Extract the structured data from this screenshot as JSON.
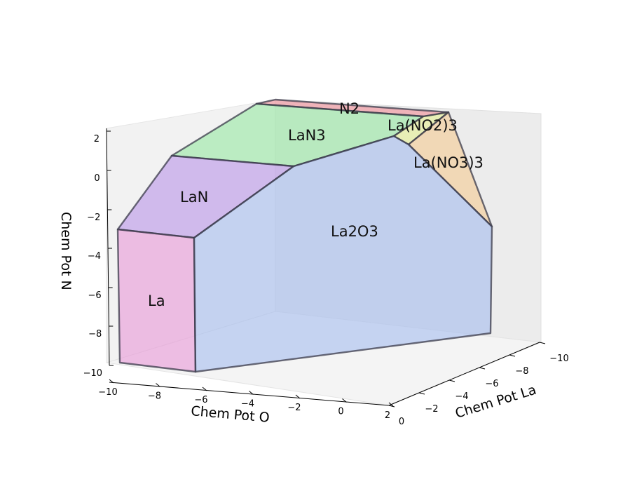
{
  "chart_data": {
    "type": "chemical_potential_diagram_3d",
    "title": "",
    "xlabel": "Chem Pot O",
    "ylabel": "Chem Pot La",
    "zlabel": "Chem Pot N",
    "x_ticks": [
      "−10",
      "−8",
      "−6",
      "−4",
      "−2",
      "0",
      "2"
    ],
    "y_ticks": [
      "0",
      "−2",
      "−4",
      "−6",
      "−8",
      "−10"
    ],
    "z_ticks": [
      "2",
      "0",
      "−2",
      "−4",
      "−6",
      "−8",
      "−10"
    ],
    "xlim": [
      -10,
      2
    ],
    "ylim": [
      -10,
      0
    ],
    "zlim": [
      -10,
      2
    ],
    "regions": [
      {
        "name": "La",
        "color": "#e88fd6"
      },
      {
        "name": "LaN",
        "color": "#b58de8"
      },
      {
        "name": "LaN3",
        "color": "#8ee89a"
      },
      {
        "name": "N2",
        "color": "#f2858f"
      },
      {
        "name": "La(NO2)3",
        "color": "#e6f08a"
      },
      {
        "name": "La(NO3)3",
        "color": "#f5c98a"
      },
      {
        "name": "La2O3",
        "color": "#9eb8ee"
      }
    ]
  }
}
